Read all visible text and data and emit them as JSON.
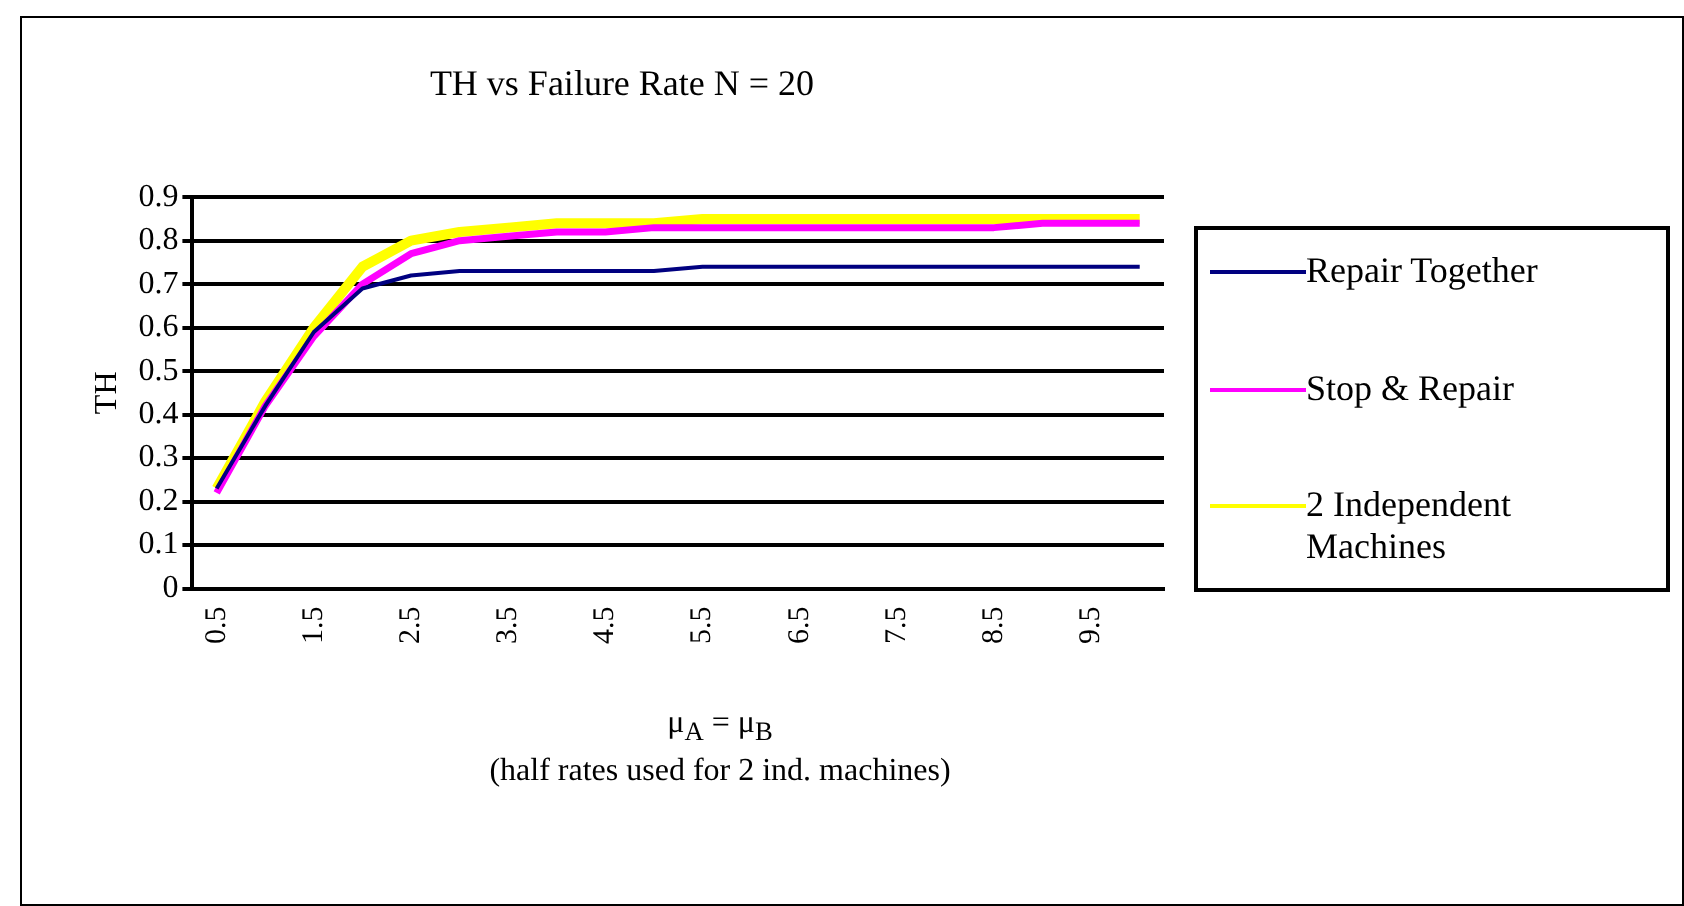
{
  "chart_data": {
    "type": "line",
    "title": "TH vs Failure Rate N = 20",
    "xlabel": "μ$_{A}$ = μ$_{B}$\n(half rates used for 2 ind. machines)",
    "ylabel": "TH",
    "categories": [
      "0.5",
      null,
      "1.5",
      null,
      "2.5",
      null,
      "3.5",
      null,
      "4.5",
      null,
      "5.5",
      null,
      "6.5",
      null,
      "7.5",
      null,
      "8.5",
      null,
      "9.5",
      null
    ],
    "series": [
      {
        "name": "Repair Together",
        "color": "#000080",
        "values": [
          0.23,
          0.42,
          0.59,
          0.69,
          0.72,
          0.73,
          0.73,
          0.73,
          0.73,
          0.73,
          0.74,
          0.74,
          0.74,
          0.74,
          0.74,
          0.74,
          0.74,
          0.74,
          0.74,
          0.74
        ]
      },
      {
        "name": "Stop & Repair",
        "color": "#ff00ff",
        "values": [
          0.22,
          0.42,
          0.58,
          0.7,
          0.77,
          0.8,
          0.81,
          0.82,
          0.82,
          0.83,
          0.83,
          0.83,
          0.83,
          0.83,
          0.83,
          0.83,
          0.83,
          0.84,
          0.84,
          0.84
        ]
      },
      {
        "name": "2 Independent Machines",
        "color": "#ffff00",
        "values": [
          0.23,
          0.43,
          0.6,
          0.74,
          0.8,
          0.82,
          0.83,
          0.84,
          0.84,
          0.84,
          0.85,
          0.85,
          0.85,
          0.85,
          0.85,
          0.85,
          0.85,
          0.85,
          0.85,
          0.85
        ]
      }
    ],
    "ylim": [
      0,
      0.9
    ],
    "yticks": [
      0,
      0.1,
      0.2,
      0.3,
      0.4,
      0.5,
      0.6,
      0.7,
      0.8,
      0.9
    ],
    "grid": "y",
    "legend": "right",
    "marker": "none",
    "line_style": "solid"
  }
}
